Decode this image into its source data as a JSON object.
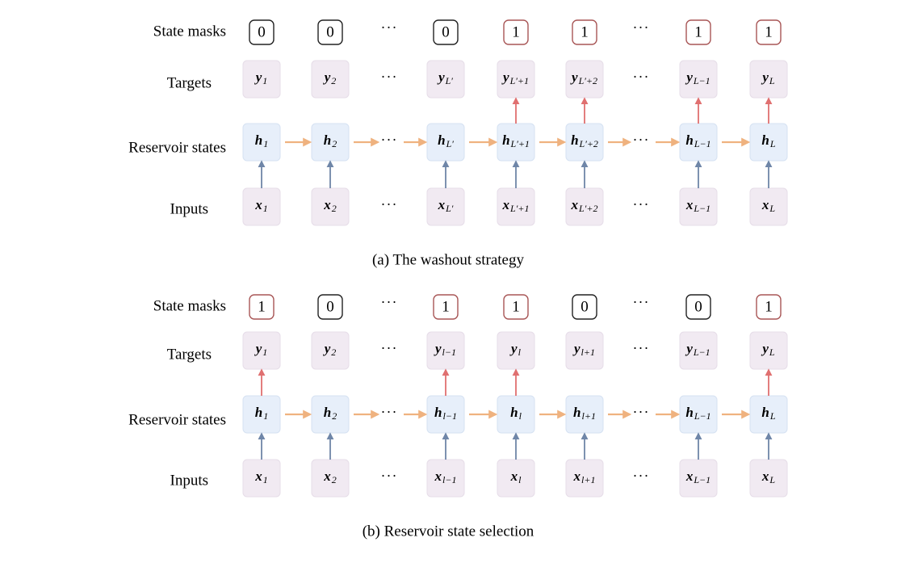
{
  "colors": {
    "mask_border_off": "#222222",
    "mask_border_on": "#a85656",
    "box_target_input": "#f1eaf2",
    "box_state": "#e7effa",
    "arrow_up_blue": "#6f86a8",
    "arrow_up_red": "#e07070",
    "arrow_right": "#efb27f"
  },
  "row_labels": {
    "masks": "State masks",
    "targets": "Targets",
    "states": "Reservoir states",
    "inputs": "Inputs"
  },
  "ellipsis": "···",
  "panels": [
    {
      "caption": "(a) The washout strategy",
      "columns": [
        {
          "mask": "0",
          "y": {
            "s": "y",
            "sub": "1"
          },
          "h": {
            "s": "h",
            "sub": "1"
          },
          "x": {
            "s": "x",
            "sub": "1"
          }
        },
        {
          "mask": "0",
          "y": {
            "s": "y",
            "sub": "2"
          },
          "h": {
            "s": "h",
            "sub": "2"
          },
          "x": {
            "s": "x",
            "sub": "2"
          }
        },
        {
          "ellipsis": true
        },
        {
          "mask": "0",
          "y": {
            "s": "y",
            "sub": "L′"
          },
          "h": {
            "s": "h",
            "sub": "L′"
          },
          "x": {
            "s": "x",
            "sub": "L′"
          }
        },
        {
          "mask": "1",
          "y": {
            "s": "y",
            "sub": "L′+1"
          },
          "h": {
            "s": "h",
            "sub": "L′+1"
          },
          "x": {
            "s": "x",
            "sub": "L′+1"
          }
        },
        {
          "mask": "1",
          "y": {
            "s": "y",
            "sub": "L′+2"
          },
          "h": {
            "s": "h",
            "sub": "L′+2"
          },
          "x": {
            "s": "x",
            "sub": "L′+2"
          }
        },
        {
          "ellipsis": true
        },
        {
          "mask": "1",
          "y": {
            "s": "y",
            "sub": "L−1"
          },
          "h": {
            "s": "h",
            "sub": "L−1"
          },
          "x": {
            "s": "x",
            "sub": "L−1"
          }
        },
        {
          "mask": "1",
          "y": {
            "s": "y",
            "sub": "L"
          },
          "h": {
            "s": "h",
            "sub": "L"
          },
          "x": {
            "s": "x",
            "sub": "L"
          }
        }
      ]
    },
    {
      "caption": "(b) Reservoir state selection",
      "columns": [
        {
          "mask": "1",
          "y": {
            "s": "y",
            "sub": "1"
          },
          "h": {
            "s": "h",
            "sub": "1"
          },
          "x": {
            "s": "x",
            "sub": "1"
          }
        },
        {
          "mask": "0",
          "y": {
            "s": "y",
            "sub": "2"
          },
          "h": {
            "s": "h",
            "sub": "2"
          },
          "x": {
            "s": "x",
            "sub": "2"
          }
        },
        {
          "ellipsis": true
        },
        {
          "mask": "1",
          "y": {
            "s": "y",
            "sub": "l−1"
          },
          "h": {
            "s": "h",
            "sub": "l−1"
          },
          "x": {
            "s": "x",
            "sub": "l−1"
          }
        },
        {
          "mask": "1",
          "y": {
            "s": "y",
            "sub": "l"
          },
          "h": {
            "s": "h",
            "sub": "l"
          },
          "x": {
            "s": "x",
            "sub": "l"
          }
        },
        {
          "mask": "0",
          "y": {
            "s": "y",
            "sub": "l+1"
          },
          "h": {
            "s": "h",
            "sub": "l+1"
          },
          "x": {
            "s": "x",
            "sub": "l+1"
          }
        },
        {
          "ellipsis": true
        },
        {
          "mask": "0",
          "y": {
            "s": "y",
            "sub": "L−1"
          },
          "h": {
            "s": "h",
            "sub": "L−1"
          },
          "x": {
            "s": "x",
            "sub": "L−1"
          }
        },
        {
          "mask": "1",
          "y": {
            "s": "y",
            "sub": "L"
          },
          "h": {
            "s": "h",
            "sub": "L"
          },
          "x": {
            "s": "x",
            "sub": "L"
          }
        }
      ]
    }
  ]
}
